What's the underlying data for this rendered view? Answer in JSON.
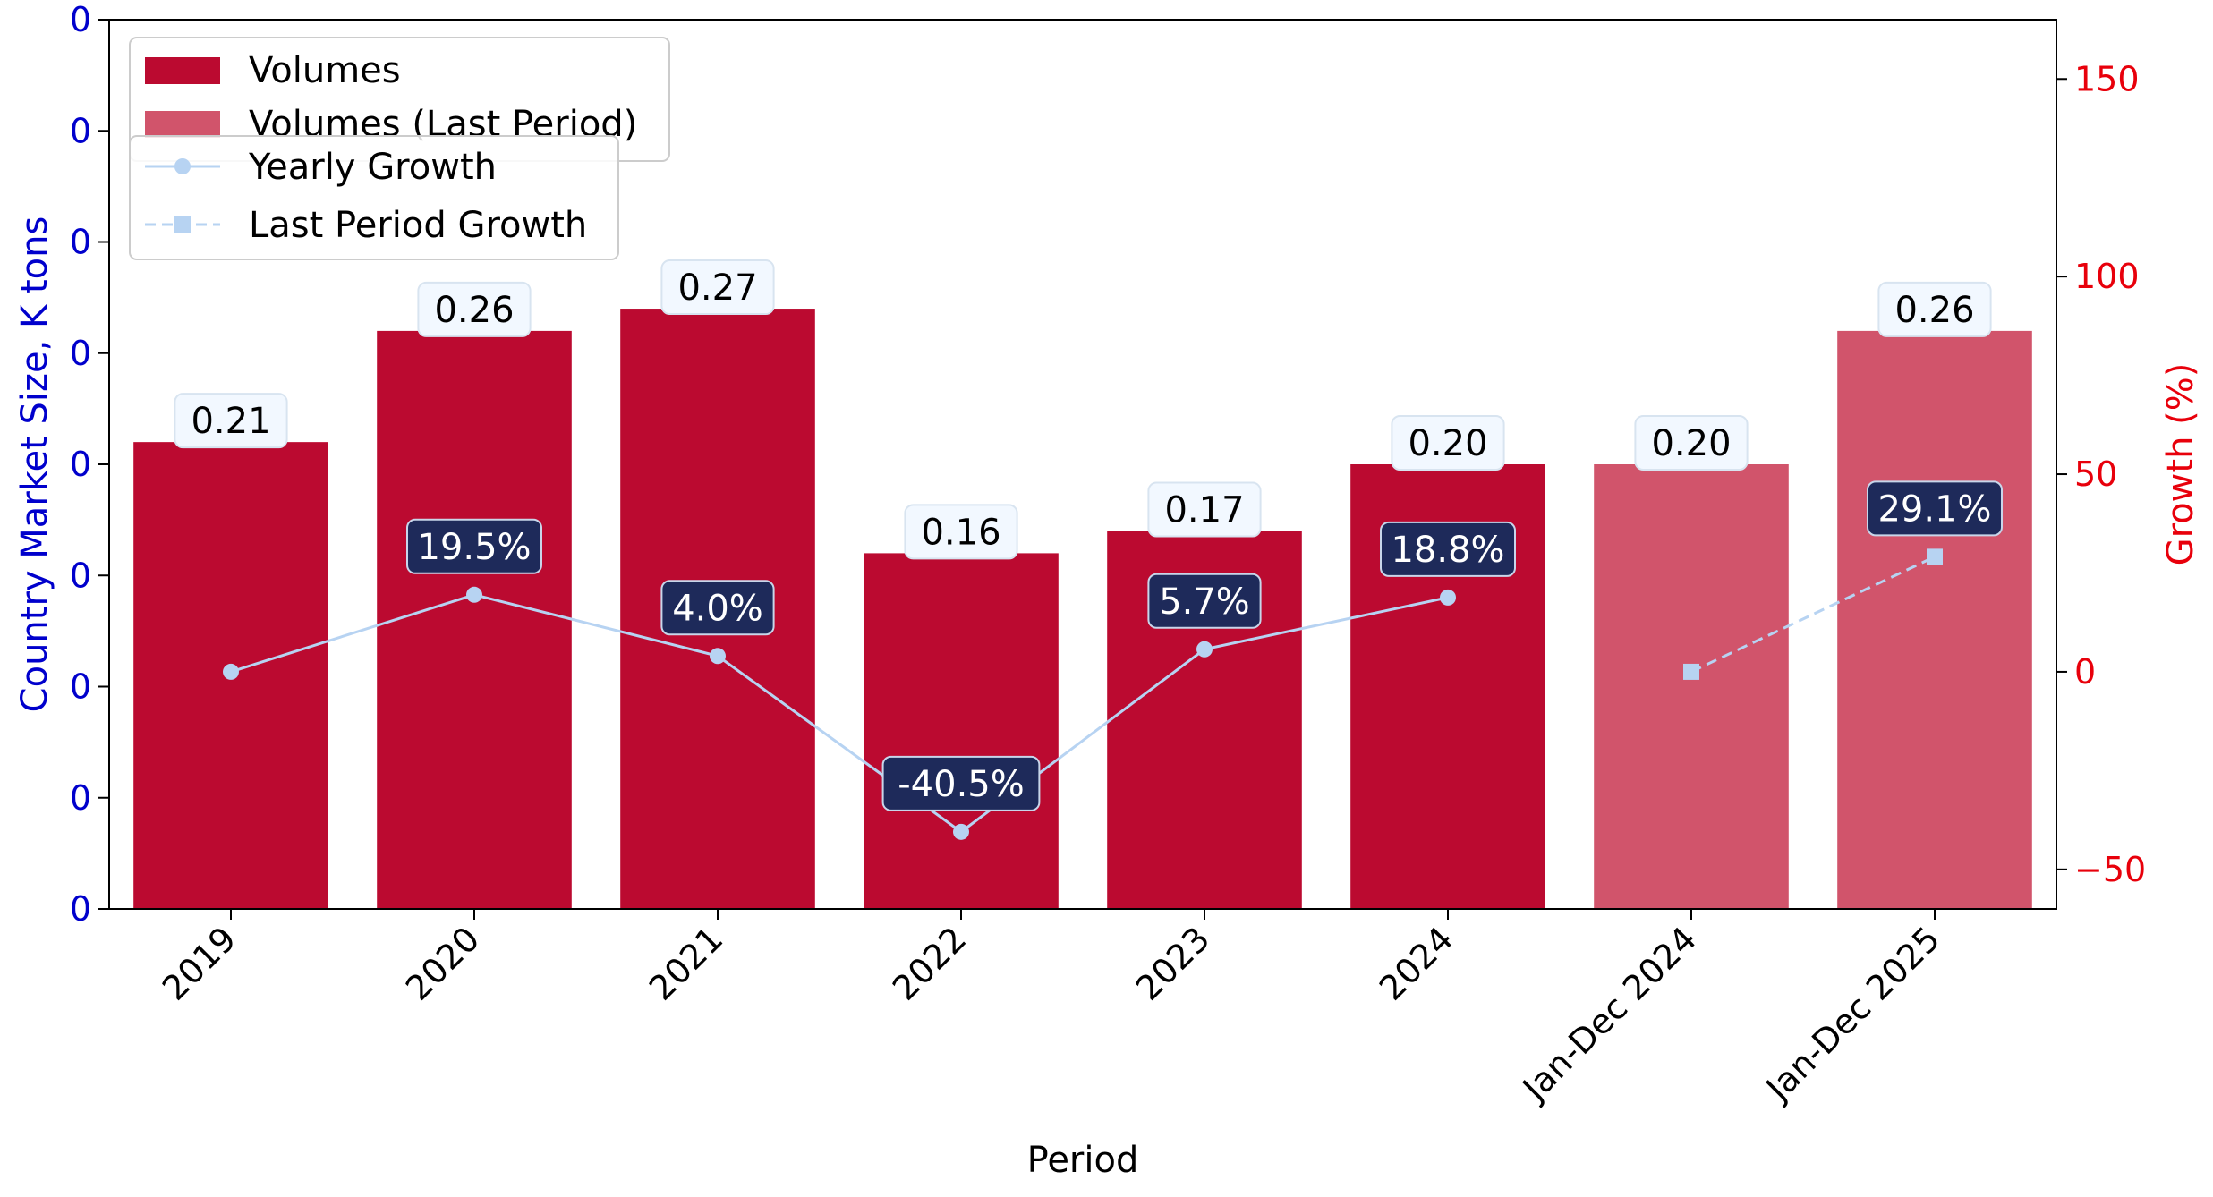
{
  "chart_data": {
    "type": "bar",
    "xlabel": "Period",
    "ylabel": "Country Market Size, K tons",
    "y2label": "Growth (%)",
    "categories": [
      "2019",
      "2020",
      "2021",
      "2022",
      "2023",
      "2024",
      "Jan-Dec 2024",
      "Jan-Dec 2025"
    ],
    "ylim": [
      0,
      0.4
    ],
    "y_tick_values": [
      0,
      0.05,
      0.1,
      0.15,
      0.2,
      0.25,
      0.3,
      0.35,
      0.4
    ],
    "y_tick_labels": [
      "0",
      "0",
      "0",
      "0",
      "0",
      "0",
      "0",
      "0",
      "0"
    ],
    "y2lim": [
      -60,
      165
    ],
    "y2_ticks": [
      -50,
      0,
      50,
      100,
      150
    ],
    "y2_tick_labels": [
      "−50",
      "0",
      "50",
      "100",
      "150"
    ],
    "series": [
      {
        "name": "Volumes",
        "kind": "bar",
        "color": "#bb0a30",
        "values": [
          0.21,
          0.26,
          0.27,
          0.16,
          0.17,
          0.2,
          null,
          null
        ],
        "labels": [
          "0.21",
          "0.26",
          "0.27",
          "0.16",
          "0.17",
          "0.20",
          "",
          ""
        ]
      },
      {
        "name": "Volumes (Last Period)",
        "kind": "bar",
        "color": "#d1546b",
        "values": [
          null,
          null,
          null,
          null,
          null,
          null,
          0.2,
          0.26
        ],
        "labels": [
          "",
          "",
          "",
          "",
          "",
          "",
          "0.20",
          "0.26"
        ]
      },
      {
        "name": "Yearly Growth",
        "kind": "line",
        "axis": "right",
        "color": "#b7d3f2",
        "marker": "circle",
        "values": [
          0,
          19.5,
          4.0,
          -40.5,
          5.7,
          18.8,
          null,
          null
        ],
        "labels": [
          "",
          "19.5%",
          "4.0%",
          "-40.5%",
          "5.7%",
          "18.8%",
          "",
          ""
        ]
      },
      {
        "name": "Last Period Growth",
        "kind": "line",
        "axis": "right",
        "style": "dashed",
        "color": "#b7d3f2",
        "marker": "square",
        "values": [
          null,
          null,
          null,
          null,
          null,
          null,
          0,
          29.1
        ],
        "labels": [
          "",
          "",
          "",
          "",
          "",
          "",
          "",
          "29.1%"
        ]
      }
    ],
    "legend": [
      {
        "placement": "top-left",
        "entries": [
          "Volumes",
          "Volumes (Last Period)"
        ]
      },
      {
        "placement": "top-left",
        "entries": [
          "Yearly Growth",
          "Last Period Growth"
        ]
      }
    ],
    "colors": {
      "left_axis": "#0000cc",
      "right_axis": "#e8000b",
      "growth_label_bg": "#1e2a5a",
      "value_label_bg": "#f2f8ff"
    }
  }
}
